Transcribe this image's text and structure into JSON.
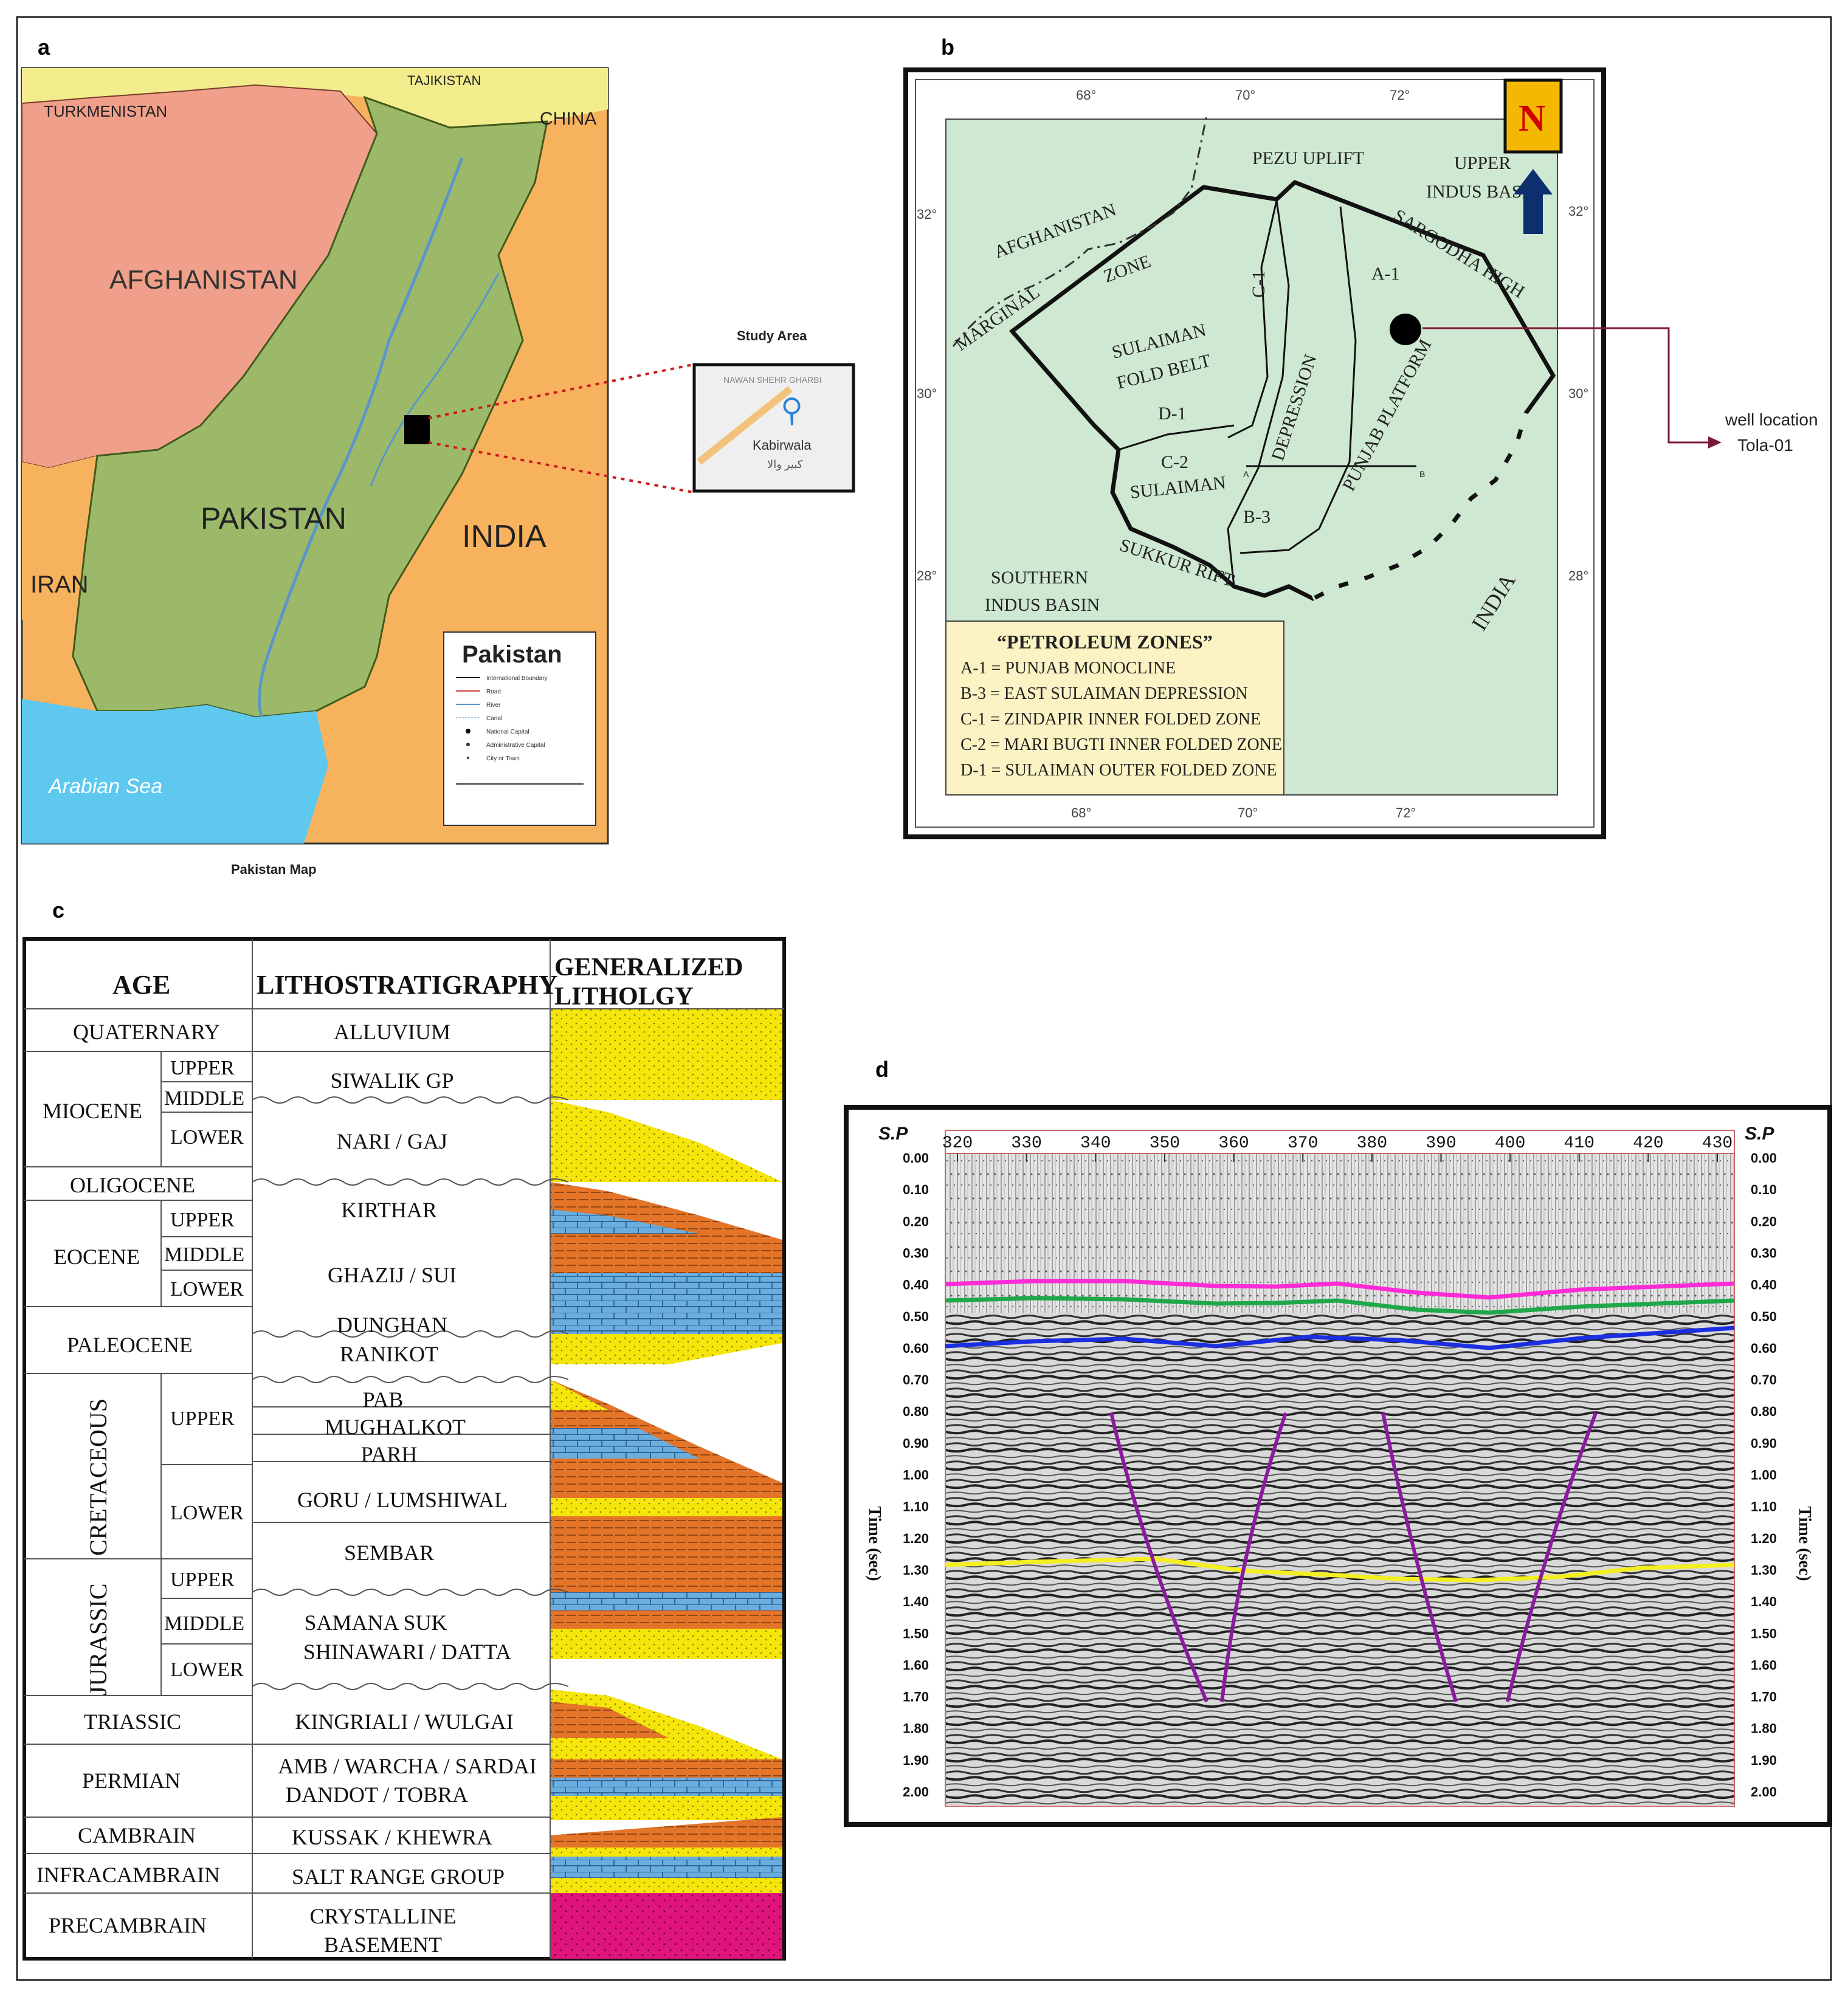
{
  "panels": {
    "a": {
      "letter": "a",
      "caption": "Pakistan Map",
      "study_area_label": "Study Area",
      "countries": [
        "TURKMENISTAN",
        "TAJIKISTAN",
        "CHINA",
        "AFGHANISTAN",
        "PAKISTAN",
        "INDIA",
        "IRAN"
      ],
      "sea": "Arabian Sea",
      "inset_place": "Kabirwala",
      "inset_place_urdu": "کبیر والا",
      "inset_top_text": "NAWAN SHEHR GHARBI",
      "legend_title": "Pakistan",
      "legend_items": [
        "International Boundary",
        "Road",
        "River",
        "Canal",
        "National Capital",
        "Administrative Capital",
        "City or Town"
      ],
      "colors": {
        "pakistan": "#9cb96a",
        "afghanistan": "#f0a08a",
        "india": "#f7b25e",
        "north": "#f2ec8c",
        "sea": "#5ec8ef"
      }
    },
    "b": {
      "letter": "b",
      "north": "N",
      "lon_ticks": [
        "68°",
        "70°",
        "72°"
      ],
      "lat_ticks": [
        "32°",
        "30°",
        "28°"
      ],
      "labels": {
        "pezu": "PEZU UPLIFT",
        "upper_indus_1": "UPPER",
        "upper_indus_2": "INDUS BASIN",
        "afghanistan": "AFGHANISTAN",
        "zone": "ZONE",
        "marginal": "MARGINAL",
        "sargodha": "SARGODHA HIGH",
        "a1": "A-1",
        "c1": "C-1",
        "sulaiman1": "SULAIMAN",
        "foldbelt": "FOLD BELT",
        "d1": "D-1",
        "depression": "DEPRESSION",
        "punjab_platform": "PUNJAB PLATFORM",
        "c2": "C-2",
        "sulaiman2": "SULAIMAN",
        "b3": "B-3",
        "pt_a": "A",
        "pt_b": "B",
        "southern": "SOUTHERN",
        "indus_basin": "INDUS BASIN",
        "sukkur": "SUKKUR RIFT",
        "india": "INDIA"
      },
      "well_label_1": "well location",
      "well_label_2": "Tola-01",
      "legend_title": "“PETROLEUM ZONES”",
      "legend_items": [
        "A-1 = PUNJAB MONOCLINE",
        "B-3 = EAST SULAIMAN DEPRESSION",
        "C-1 = ZINDAPIR INNER FOLDED ZONE",
        "C-2 = MARI BUGTI INNER FOLDED ZONE",
        "D-1 = SULAIMAN OUTER FOLDED ZONE"
      ],
      "colors": {
        "map_bg": "#cfe8d2",
        "legend_bg": "#fbf3c4",
        "north_bg": "#f5b800",
        "north_text": "#d00000",
        "arrow": "#0d2f6e"
      }
    },
    "c": {
      "letter": "c",
      "headers": {
        "age": "AGE",
        "litho": "LITHOSTRATIGRAPHY",
        "lithology_1": "GENERALIZED",
        "lithology_2": "LITHOLGY"
      },
      "periods": [
        {
          "name": "QUATERNARY"
        },
        {
          "name": "MIOCENE",
          "subs": [
            "UPPER",
            "MIDDLE",
            "LOWER"
          ]
        },
        {
          "name": "OLIGOCENE"
        },
        {
          "name": "EOCENE",
          "subs": [
            "UPPER",
            "MIDDLE",
            "LOWER"
          ]
        },
        {
          "name": "PALEOCENE"
        },
        {
          "name": "CRETACEOUS",
          "subs": [
            "UPPER",
            "LOWER"
          ]
        },
        {
          "name": "JURASSIC",
          "subs": [
            "UPPER",
            "MIDDLE",
            "LOWER"
          ]
        },
        {
          "name": "TRIASSIC"
        },
        {
          "name": "PERMIAN"
        },
        {
          "name": "CAMBRAIN"
        },
        {
          "name": "INFRACAMBRAIN"
        },
        {
          "name": "PRECAMBRAIN"
        }
      ],
      "formations": [
        [
          "ALLUVIUM"
        ],
        [
          "SIWALIK GP"
        ],
        [
          "NARI / GAJ"
        ],
        [
          "KIRTHAR"
        ],
        [
          "GHAZIJ / SUI"
        ],
        [
          "DUNGHAN"
        ],
        [
          "RANIKOT"
        ],
        [
          "PAB"
        ],
        [
          "MUGHALKOT"
        ],
        [
          "PARH"
        ],
        [
          "GORU / LUMSHIWAL"
        ],
        [
          "SEMBAR"
        ],
        [
          "SAMANA SUK",
          "SHINAWARI / DATTA"
        ],
        [
          "KINGRIALI / WULGAI"
        ],
        [
          "AMB / WARCHA / SARDAI",
          "DANDOT / TOBRA"
        ],
        [
          "KUSSAK / KHEWRA"
        ],
        [
          "SALT RANGE GROUP"
        ],
        [
          "CRYSTALLINE",
          "BASEMENT"
        ]
      ],
      "colors": {
        "sand": "#f5e50a",
        "shale": "#e37428",
        "lime": "#6aaee0",
        "basement": "#e0157c"
      }
    },
    "d": {
      "letter": "d",
      "sp_label": "S.P",
      "shotpoints": [
        "320",
        "330",
        "340",
        "350",
        "360",
        "370",
        "380",
        "390",
        "400",
        "410",
        "420",
        "430"
      ],
      "times": [
        "0.00",
        "0.10",
        "0.20",
        "0.30",
        "0.40",
        "0.50",
        "0.60",
        "0.70",
        "0.80",
        "0.90",
        "1.00",
        "1.10",
        "1.20",
        "1.30",
        "1.40",
        "1.50",
        "1.60",
        "1.70",
        "1.80",
        "1.90",
        "2.00"
      ],
      "time_axis_label": "Time (sec)",
      "horizon_colors": [
        "#ff2bd6",
        "#1fa84a",
        "#1a2fe0",
        "#f5ee20"
      ],
      "fault_color": "#8a1a9e"
    }
  }
}
